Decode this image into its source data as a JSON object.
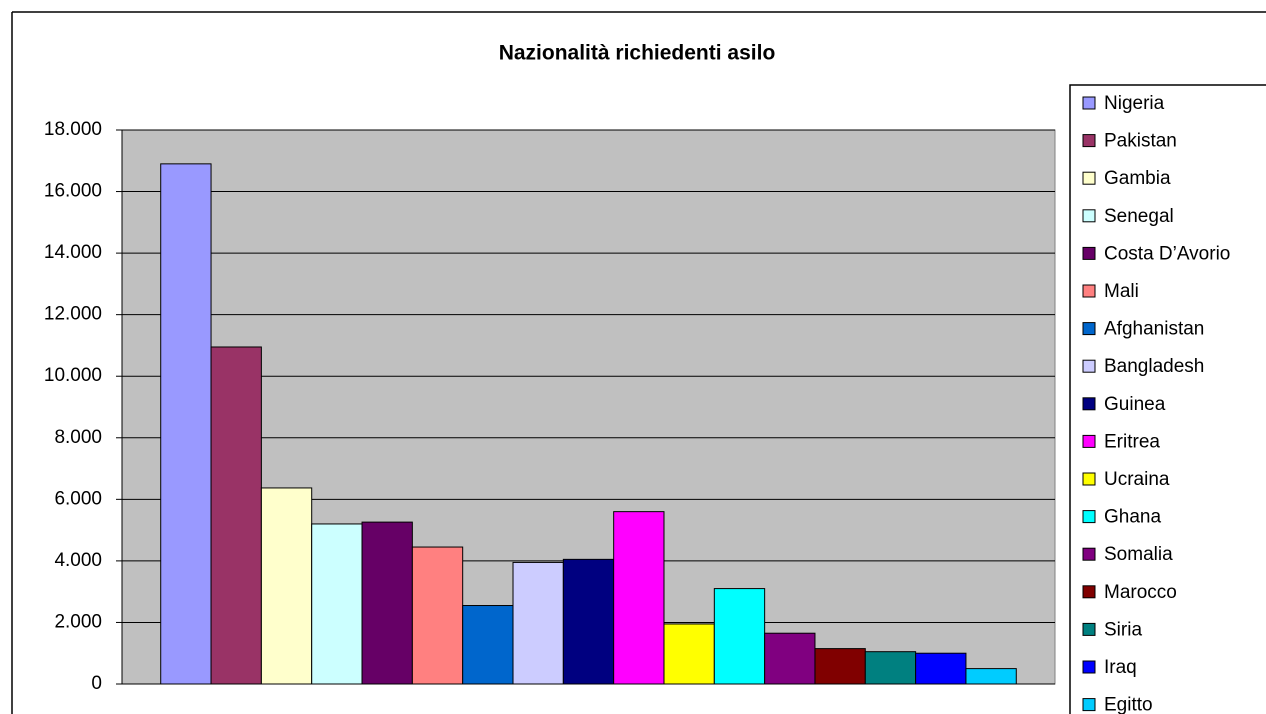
{
  "chart_data": {
    "type": "bar",
    "title": "Nazionalità richiedenti asilo",
    "series": [
      {
        "name": "Nigeria",
        "color": "#9999ff",
        "values": [
          16900
        ]
      },
      {
        "name": "Pakistan",
        "color": "#993366",
        "values": [
          10950
        ]
      },
      {
        "name": "Gambia",
        "color": "#ffffcc",
        "values": [
          6370
        ]
      },
      {
        "name": "Senegal",
        "color": "#ccffff",
        "values": [
          5200
        ]
      },
      {
        "name": "Costa D’Avorio",
        "color": "#660066",
        "values": [
          5260
        ]
      },
      {
        "name": "Mali",
        "color": "#ff8080",
        "values": [
          4450
        ]
      },
      {
        "name": "Afghanistan",
        "color": "#0066cc",
        "values": [
          2550
        ]
      },
      {
        "name": "Bangladesh",
        "color": "#ccccff",
        "values": [
          3950
        ]
      },
      {
        "name": "Guinea",
        "color": "#000080",
        "values": [
          4050
        ]
      },
      {
        "name": "Eritrea",
        "color": "#ff00ff",
        "values": [
          5600
        ]
      },
      {
        "name": "Ucraina",
        "color": "#ffff00",
        "values": [
          1950
        ]
      },
      {
        "name": "Ghana",
        "color": "#00ffff",
        "values": [
          3100
        ]
      },
      {
        "name": "Somalia",
        "color": "#800080",
        "values": [
          1650
        ]
      },
      {
        "name": "Marocco",
        "color": "#800000",
        "values": [
          1150
        ]
      },
      {
        "name": "Siria",
        "color": "#008080",
        "values": [
          1050
        ]
      },
      {
        "name": "Iraq",
        "color": "#0000ff",
        "values": [
          1000
        ]
      },
      {
        "name": "Egitto",
        "color": "#00ccff",
        "values": [
          500
        ]
      }
    ],
    "ylim": [
      0,
      18000
    ],
    "yticks": [
      0,
      {
        "value": 2000,
        "label": "2.000"
      },
      {
        "value": 4000,
        "label": "4.000"
      },
      {
        "value": 6000,
        "label": "6.000"
      },
      {
        "value": 8000,
        "label": "8.000"
      },
      {
        "value": 10000,
        "label": "10.000"
      },
      {
        "value": 12000,
        "label": "12.000"
      },
      {
        "value": 14000,
        "label": "14.000"
      },
      {
        "value": 16000,
        "label": "16.000"
      },
      {
        "value": 18000,
        "label": "18.000"
      }
    ],
    "grid": true,
    "plot_background": "#c0c0c0",
    "legend": "right"
  }
}
